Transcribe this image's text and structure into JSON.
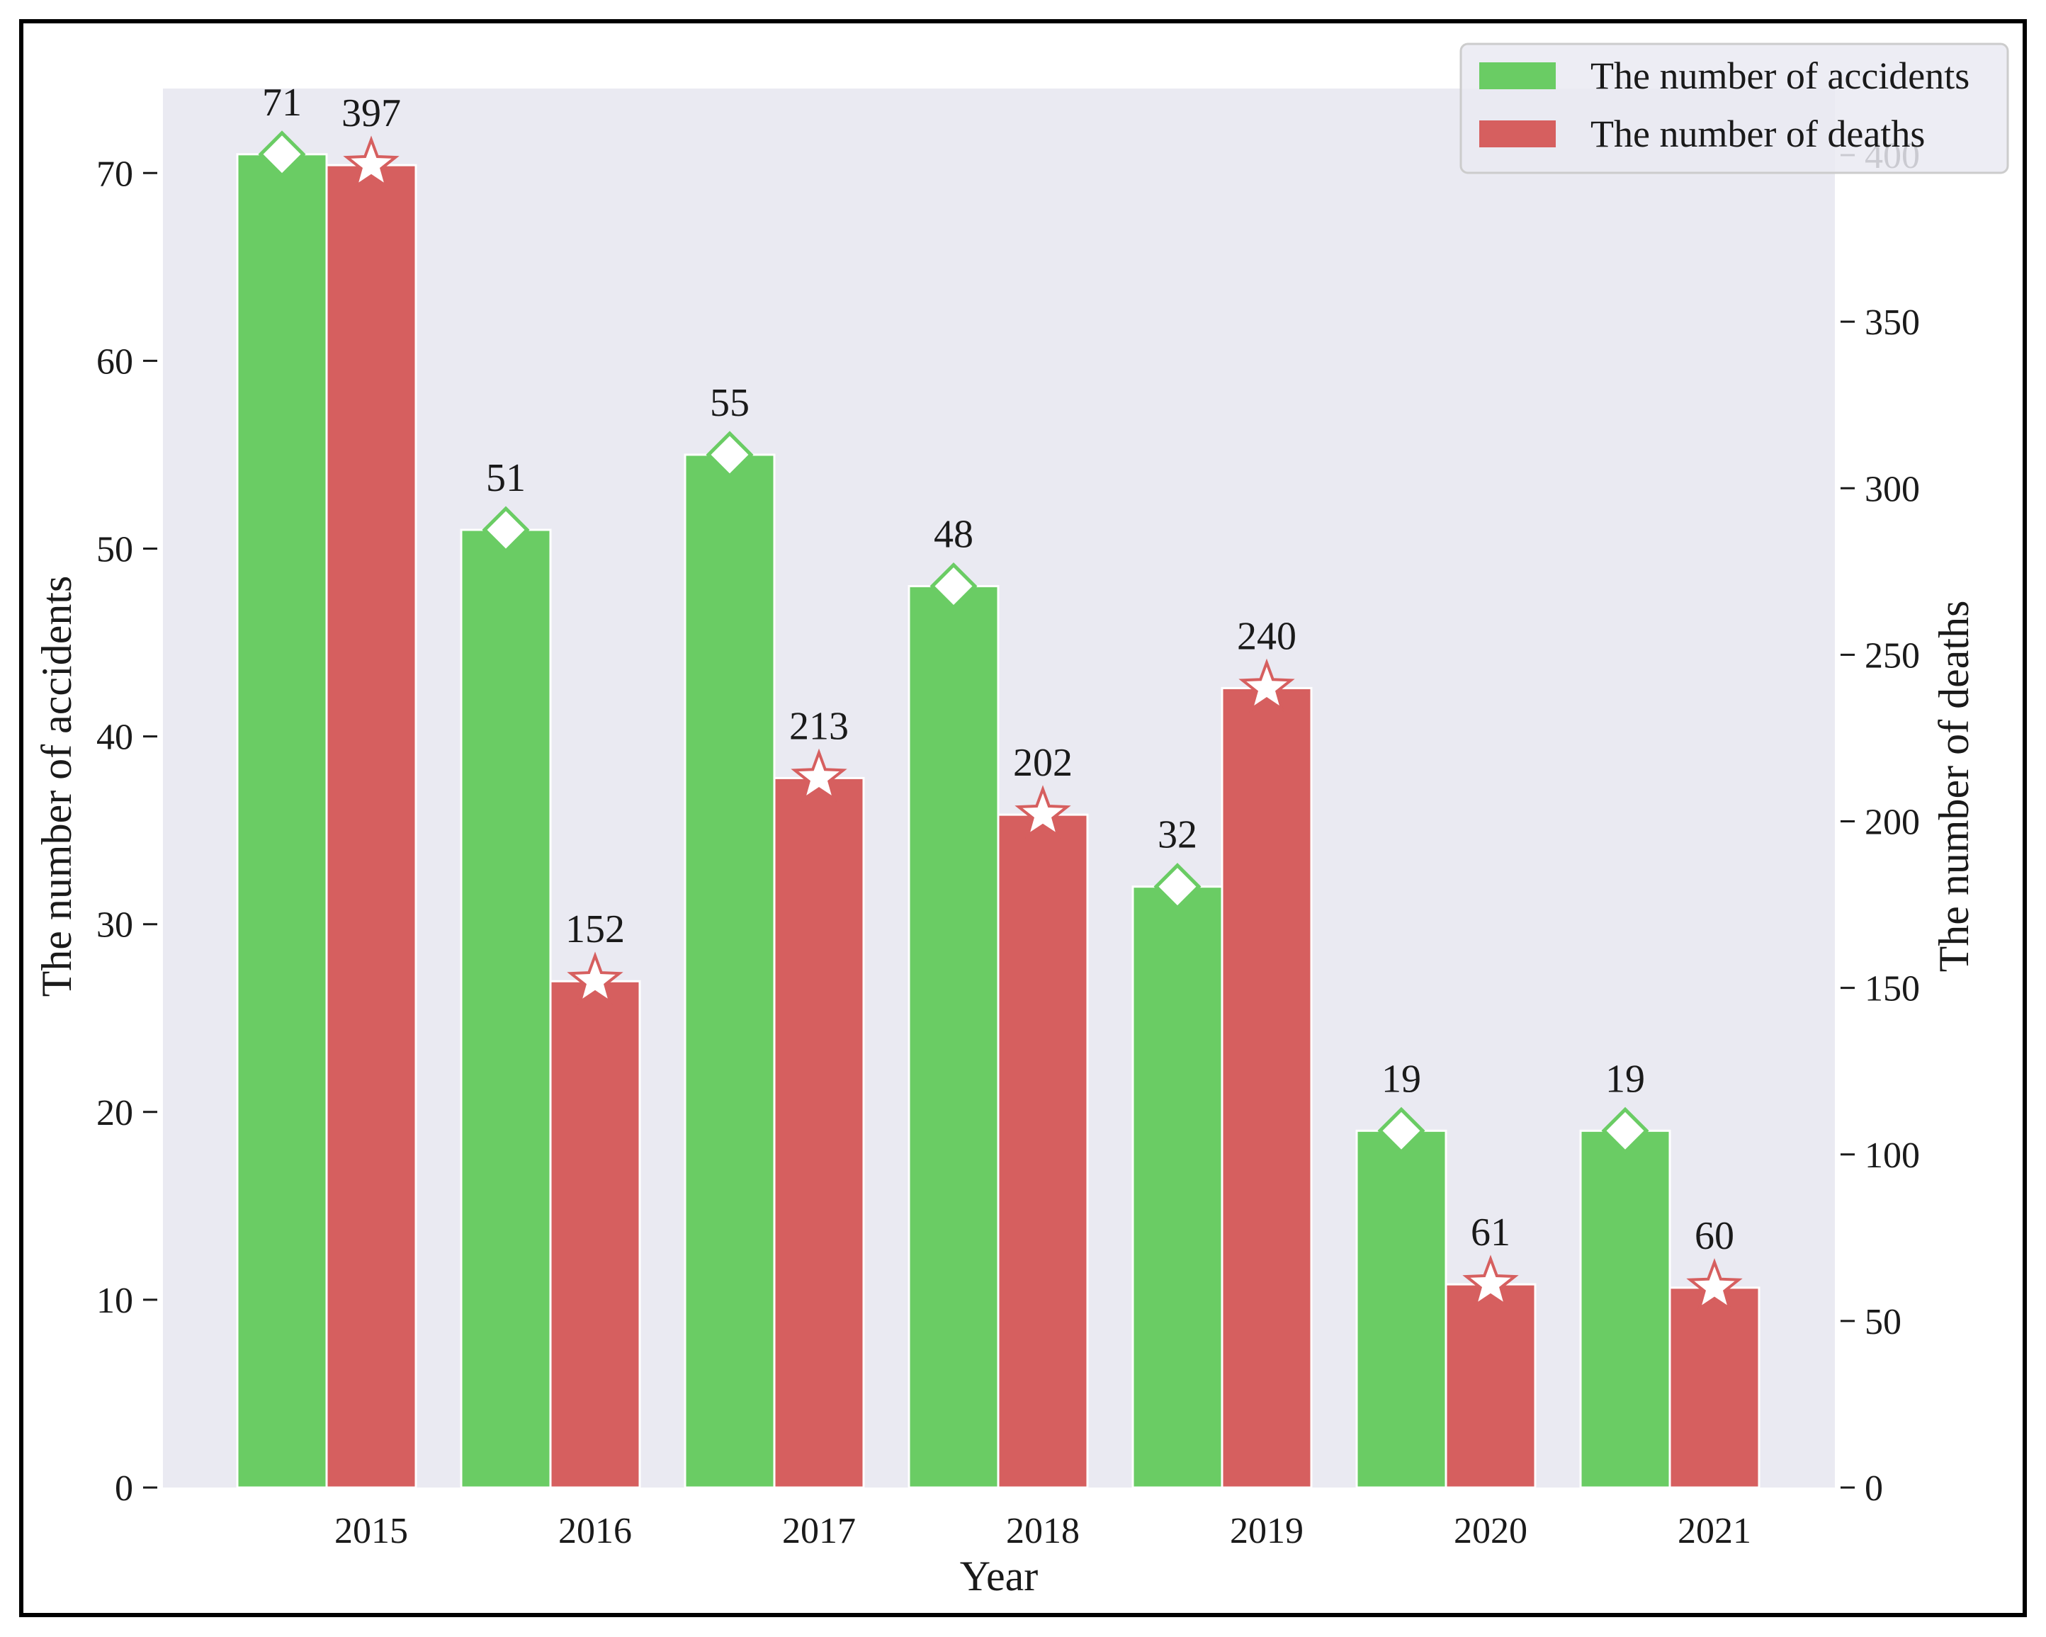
{
  "chart_data": {
    "type": "bar",
    "title": "",
    "xlabel": "Year",
    "ylabel_left": "The number of accidents",
    "ylabel_right": "The number of deaths",
    "categories": [
      "2015",
      "2016",
      "2017",
      "2018",
      "2019",
      "2020",
      "2021"
    ],
    "series": [
      {
        "name": "The number of accidents",
        "axis": "left",
        "color": "#6acc64",
        "marker": "diamond",
        "values": [
          71,
          51,
          55,
          48,
          32,
          19,
          19
        ],
        "labels": [
          "71",
          "51",
          "55",
          "48",
          "32",
          "19",
          "19"
        ]
      },
      {
        "name": "The number of deaths",
        "axis": "right",
        "color": "#d65f5f",
        "marker": "star",
        "values": [
          397,
          152,
          213,
          202,
          240,
          61,
          60
        ],
        "labels": [
          "397",
          "152",
          "213",
          "202",
          "240",
          "61",
          "60"
        ]
      }
    ],
    "ylim_left": [
      0,
      74.5
    ],
    "ylim_right": [
      0,
      420
    ],
    "yticks_left": [
      "0",
      "10",
      "20",
      "30",
      "40",
      "50",
      "60",
      "70"
    ],
    "yticks_right": [
      "0",
      "50",
      "100",
      "150",
      "200",
      "250",
      "300",
      "350",
      "400"
    ],
    "grid": false,
    "legend_position": "top-right",
    "background_color": "#eaeaf2"
  }
}
